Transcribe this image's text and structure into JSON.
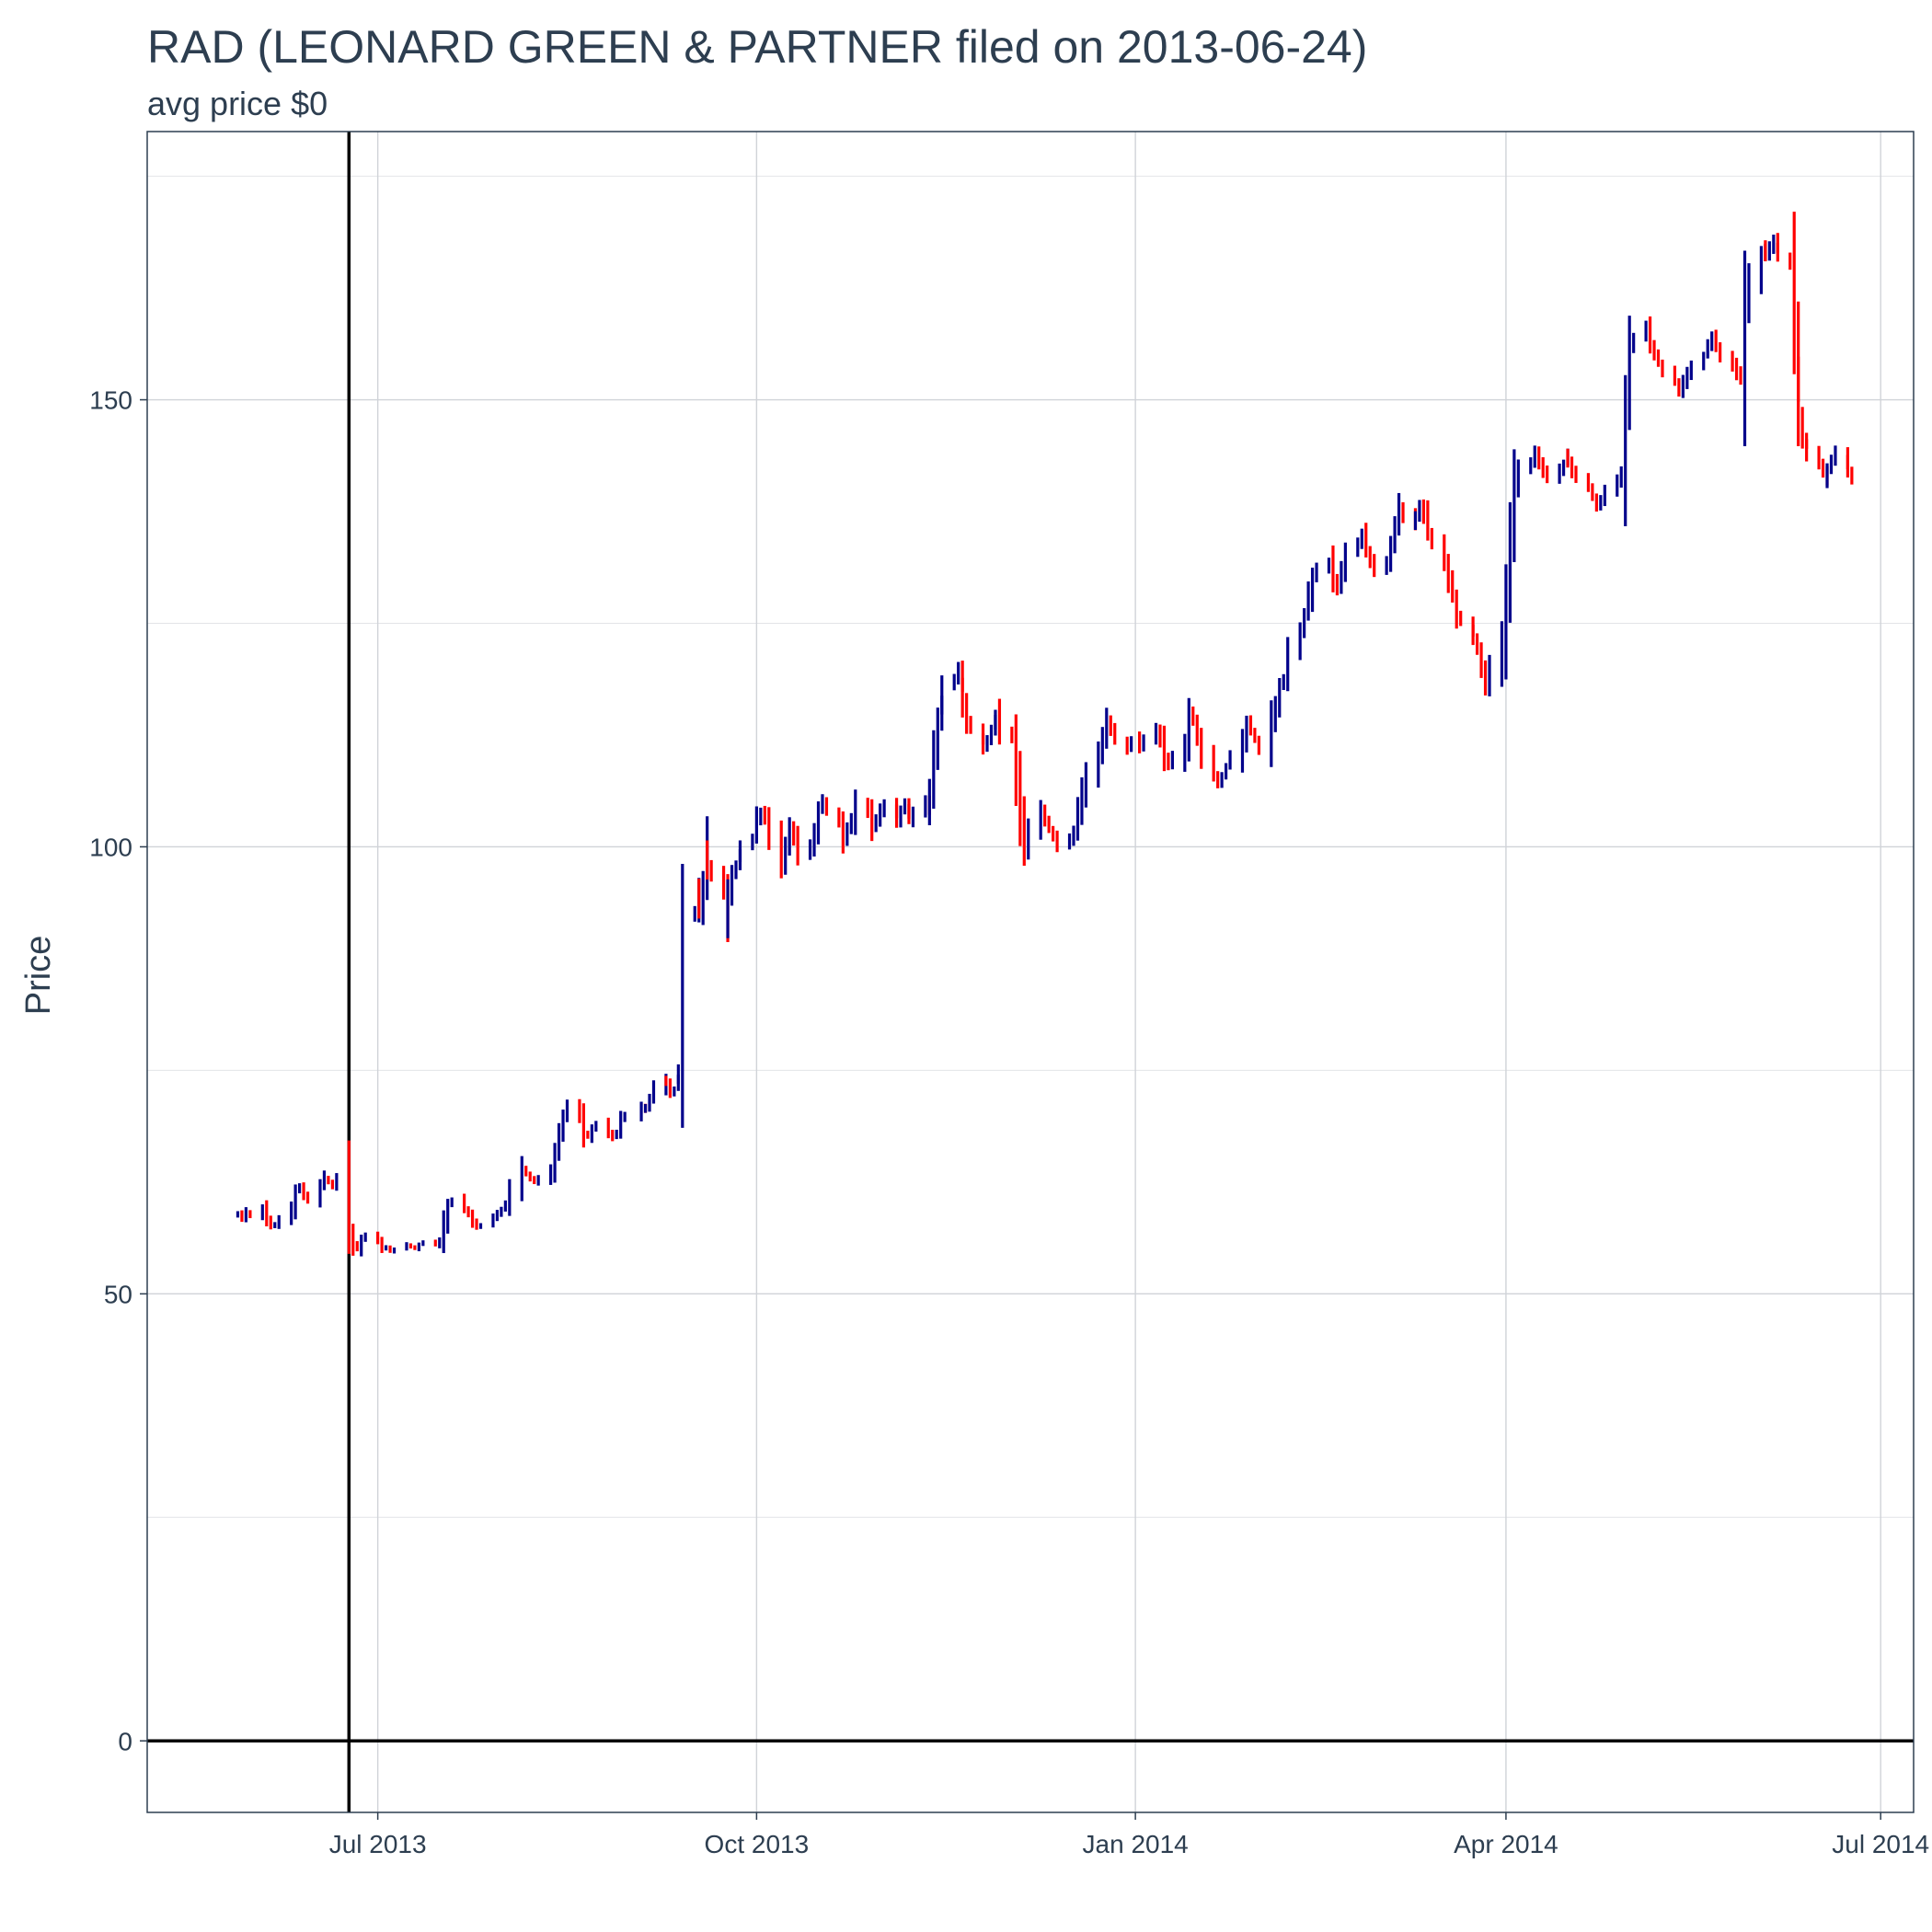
{
  "chart_data": {
    "type": "candlestick",
    "title": "RAD (LEONARD GREEN & PARTNER filed on 2013-06-24)",
    "subtitle": "avg price $0",
    "xlabel": "",
    "ylabel": "Price",
    "xlim": [
      "2013-05-06",
      "2014-07-09"
    ],
    "ylim": [
      -8,
      180
    ],
    "x_ticks": [
      {
        "date": "2013-07-01",
        "label": "Jul 2013"
      },
      {
        "date": "2013-10-01",
        "label": "Oct 2013"
      },
      {
        "date": "2014-01-01",
        "label": "Jan 2014"
      },
      {
        "date": "2014-04-01",
        "label": "Apr 2014"
      },
      {
        "date": "2014-07-01",
        "label": "Jul 2014"
      }
    ],
    "y_ticks": [
      0,
      50,
      100,
      150
    ],
    "y_minor_ticks": [
      25,
      75,
      125,
      175
    ],
    "grid": true,
    "reference_lines": {
      "vertical_date": "2013-06-24",
      "horizontal_value": 0
    },
    "colors": {
      "up": "#00008b",
      "down": "#ff0000",
      "reference": "#000000"
    },
    "series": [
      {
        "start": "2013-05-28",
        "end": "2013-06-21",
        "closes": [
          59,
          58.5,
          59.2,
          58.8,
          59.5,
          58.2,
          57.5,
          57.8,
          58.5,
          59.5,
          61.5,
          62,
          61,
          60.5,
          62,
          63,
          62.5,
          62,
          62.8
        ]
      },
      {
        "start": "2013-06-24",
        "end": "2013-07-31",
        "closes": [
          57,
          55.5,
          55,
          56,
          56.5,
          55.8,
          55,
          55.2,
          54.8,
          55,
          55.5,
          55.2,
          55,
          55.5,
          55.8,
          55.5,
          56,
          58,
          60,
          60.5,
          59.5,
          59,
          58,
          57.5,
          57.8,
          58.5,
          59,
          59.5
        ]
      },
      {
        "start": "2013-08-01",
        "end": "2013-08-30",
        "closes": [
          60,
          62,
          64,
          63.5,
          63,
          62.5,
          63,
          64,
          66,
          68,
          70,
          71,
          70,
          68,
          67.5,
          68.5,
          69,
          68,
          67.5,
          68,
          69.5,
          70
        ]
      },
      {
        "start": "2013-09-03",
        "end": "2013-09-30",
        "closes": [
          71,
          70.5,
          71,
          72,
          73,
          74,
          73.5,
          72.5,
          73,
          74,
          75,
          92,
          93,
          95,
          93,
          96,
          100,
          98,
          97,
          95,
          92,
          95,
          97,
          98,
          99,
          100,
          101
        ]
      },
      {
        "start": "2013-10-01",
        "end": "2013-10-31",
        "closes": [
          103,
          104,
          103,
          101,
          98,
          100,
          102,
          101,
          99,
          100,
          102,
          104,
          105,
          104,
          103,
          101,
          102,
          103,
          105,
          104,
          102,
          103,
          104
        ]
      },
      {
        "start": "2013-11-01",
        "end": "2013-11-29",
        "closes": [
          105,
          104,
          103,
          104,
          105,
          104,
          103,
          104,
          105,
          104,
          106,
          110,
          114,
          116,
          118,
          119,
          120,
          118,
          116,
          114,
          113,
          112,
          111,
          112,
          113,
          114,
          115,
          113
        ]
      },
      {
        "start": "2013-12-02",
        "end": "2013-12-31",
        "closes": [
          112,
          108,
          103,
          100,
          102,
          104,
          103,
          102,
          101,
          100,
          101,
          102,
          104,
          106,
          108,
          110,
          112,
          114,
          113,
          112,
          111,
          112
        ]
      },
      {
        "start": "2014-01-02",
        "end": "2014-01-31",
        "closes": [
          111,
          112,
          113,
          112,
          110,
          109,
          110,
          112,
          115,
          114,
          112,
          110,
          108,
          107,
          108,
          109,
          110,
          112,
          114,
          113,
          112,
          111
        ]
      },
      {
        "start": "2014-02-03",
        "end": "2014-02-28",
        "closes": [
          114,
          116,
          118,
          119,
          122,
          124,
          126,
          128,
          130,
          131,
          132,
          130,
          129,
          131,
          133,
          134,
          135,
          133,
          132,
          131
        ]
      },
      {
        "start": "2014-03-03",
        "end": "2014-03-31",
        "closes": [
          132,
          134,
          136,
          138,
          137,
          136,
          137,
          138,
          137,
          135,
          134,
          132,
          130,
          128,
          126,
          125,
          124,
          123,
          122,
          120,
          118,
          120,
          123
        ]
      },
      {
        "start": "2014-04-01",
        "end": "2014-04-30",
        "closes": [
          128,
          134,
          140,
          142,
          143,
          144,
          143,
          142,
          141,
          142,
          143,
          144,
          143,
          142,
          141,
          140,
          139,
          138,
          139,
          140,
          141,
          142,
          150
        ]
      },
      {
        "start": "2014-05-01",
        "end": "2014-05-30",
        "closes": [
          156,
          157,
          158,
          156,
          155,
          154,
          153,
          152,
          151,
          152,
          153,
          154,
          155,
          156,
          157,
          156,
          155,
          154,
          153,
          152,
          160,
          163
        ]
      },
      {
        "start": "2014-06-02",
        "end": "2014-06-24",
        "closes": [
          166,
          167,
          166,
          167,
          168,
          167,
          166,
          165,
          158,
          152,
          148,
          146,
          145,
          144,
          143,
          142,
          141,
          142,
          143,
          144,
          143,
          142,
          141
        ]
      }
    ]
  }
}
